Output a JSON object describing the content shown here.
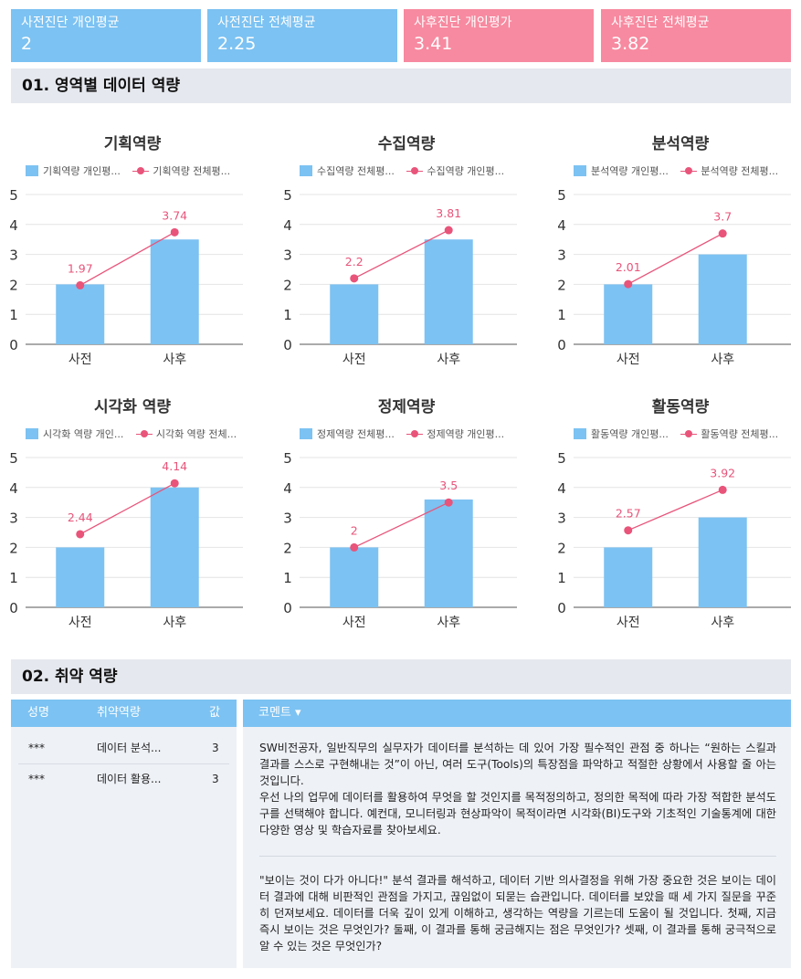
{
  "cards": [
    {
      "title": "사전진단 개인평균",
      "value": "2",
      "color": "#7cc2f2"
    },
    {
      "title": "사전진단 전체평균",
      "value": "2.25",
      "color": "#7cc2f2"
    },
    {
      "title": "사후진단 개인평가",
      "value": "3.41",
      "color": "#f78aa0"
    },
    {
      "title": "사후진단 전체평균",
      "value": "3.82",
      "color": "#f78aa0"
    }
  ],
  "section1": {
    "title": "01. 영역별 데이터 역량"
  },
  "section2": {
    "title": "02. 취약 역량"
  },
  "colors": {
    "bar": "#7cc2f2",
    "line": "#e8547a",
    "label": "#e8547a"
  },
  "chart_data": [
    {
      "type": "bar+line",
      "title": "기획역량",
      "categories": [
        "사전",
        "사후"
      ],
      "series": [
        {
          "name": "기획역량 개인평...",
          "kind": "bar",
          "values": [
            2,
            3.5
          ]
        },
        {
          "name": "기획역량 전체평...",
          "kind": "line",
          "values": [
            1.97,
            3.74
          ],
          "labels": [
            "1.97",
            "3.74"
          ]
        }
      ],
      "ylim": [
        0,
        5
      ],
      "yticks": [
        "0",
        "1",
        "2",
        "3",
        "4",
        "5"
      ],
      "grid": true,
      "legend": "top"
    },
    {
      "type": "bar+line",
      "title": "수집역량",
      "categories": [
        "사전",
        "사후"
      ],
      "series": [
        {
          "name": "수집역량 전체평...",
          "kind": "bar",
          "values": [
            2,
            3.5
          ]
        },
        {
          "name": "수집역량 개인평...",
          "kind": "line",
          "values": [
            2.2,
            3.81
          ],
          "labels": [
            "2.2",
            "3.81"
          ]
        }
      ],
      "ylim": [
        0,
        5
      ],
      "yticks": [
        "0",
        "1",
        "2",
        "3",
        "4",
        "5"
      ],
      "grid": true,
      "legend": "top"
    },
    {
      "type": "bar+line",
      "title": "분석역량",
      "categories": [
        "사전",
        "사후"
      ],
      "series": [
        {
          "name": "분석역량 개인평...",
          "kind": "bar",
          "values": [
            2,
            3
          ]
        },
        {
          "name": "분석역량 전체평...",
          "kind": "line",
          "values": [
            2.01,
            3.7
          ],
          "labels": [
            "2.01",
            "3.7"
          ]
        }
      ],
      "ylim": [
        0,
        5
      ],
      "yticks": [
        "0",
        "1",
        "2",
        "3",
        "4",
        "5"
      ],
      "grid": true,
      "legend": "top"
    },
    {
      "type": "bar+line",
      "title": "시각화 역량",
      "categories": [
        "사전",
        "사후"
      ],
      "series": [
        {
          "name": "시각화 역량 개인...",
          "kind": "bar",
          "values": [
            2,
            4
          ]
        },
        {
          "name": "시각화 역량 전체...",
          "kind": "line",
          "values": [
            2.44,
            4.14
          ],
          "labels": [
            "2.44",
            "4.14"
          ]
        }
      ],
      "ylim": [
        0,
        5
      ],
      "yticks": [
        "0",
        "1",
        "2",
        "3",
        "4",
        "5"
      ],
      "grid": true,
      "legend": "top"
    },
    {
      "type": "bar+line",
      "title": "정제역량",
      "categories": [
        "사전",
        "사후"
      ],
      "series": [
        {
          "name": "정제역량 전체평...",
          "kind": "bar",
          "values": [
            2,
            3.6
          ]
        },
        {
          "name": "정제역량 개인평...",
          "kind": "line",
          "values": [
            2,
            3.5
          ],
          "labels": [
            "2",
            "3.5"
          ]
        }
      ],
      "ylim": [
        0,
        5
      ],
      "yticks": [
        "0",
        "1",
        "2",
        "3",
        "4",
        "5"
      ],
      "grid": true,
      "legend": "top"
    },
    {
      "type": "bar+line",
      "title": "활동역량",
      "categories": [
        "사전",
        "사후"
      ],
      "series": [
        {
          "name": "활동역량 개인평...",
          "kind": "bar",
          "values": [
            2,
            3
          ]
        },
        {
          "name": "활동역량 전체평...",
          "kind": "line",
          "values": [
            2.57,
            3.92
          ],
          "labels": [
            "2.57",
            "3.92"
          ]
        }
      ],
      "ylim": [
        0,
        5
      ],
      "yticks": [
        "0",
        "1",
        "2",
        "3",
        "4",
        "5"
      ],
      "grid": true,
      "legend": "top"
    }
  ],
  "weak_table": {
    "headers": {
      "name": "성명",
      "skill": "취약역량",
      "value": "값"
    },
    "rows": [
      {
        "name": "***",
        "skill": "데이터 분석...",
        "value": "3"
      },
      {
        "name": "***",
        "skill": "데이터 활용...",
        "value": "3"
      }
    ]
  },
  "comment": {
    "header": "코멘트 ▾",
    "paragraph1": "SW비전공자, 일반직무의 실무자가 데이터를 분석하는 데 있어 가장 필수적인 관점 중 하나는 “원하는 스킬과 결과를 스스로 구현해내는 것”이 아닌, 여러 도구(Tools)의 특장점을 파악하고 적절한 상황에서 사용할 줄 아는 것입니다.",
    "paragraph2": "우선 나의 업무에 데이터를 활용하여 무엇을 할 것인지를 목적정의하고, 정의한 목적에 따라 가장 적합한 분석도구를 선택해야 합니다. 예컨대, 모니터링과 현상파악이 목적이라면 시각화(BI)도구와 기초적인 기술통계에 대한 다양한 영상 및 학습자료를  찾아보세요.",
    "paragraph3": "\"보이는 것이 다가 아니다!\" 분석 결과를 해석하고, 데이터 기반 의사결정을 위해 가장 중요한 것은 보이는 데이터 결과에 대해 비판적인 관점을 가지고, 끊임없이 되묻는 습관입니다. 데이터를 보았을 때 세 가지 질문을 꾸준히 던져보세요. 데이터를 더욱 깊이 있게 이해하고, 생각하는 역량을 기르는데 도움이 될 것입니다. 첫째, 지금 즉시 보이는 것은 무엇인가? 둘째, 이 결과를 통해 궁금해지는 점은 무엇인가? 셋째, 이 결과를 통해 궁극적으로 알 수 있는 것은 무엇인가?"
  }
}
